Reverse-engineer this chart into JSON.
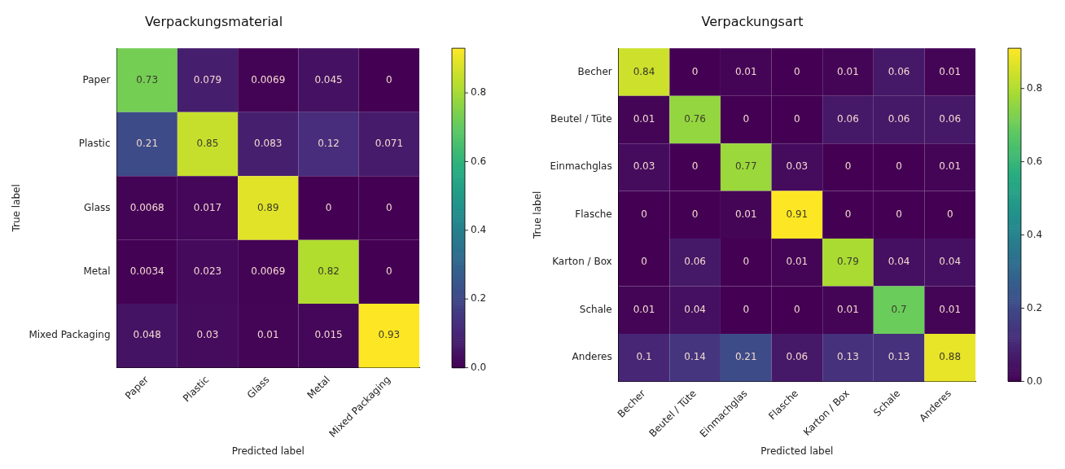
{
  "chart_data": [
    {
      "type": "heatmap",
      "title": "Verpackungsmaterial",
      "xlabel": "Predicted label",
      "ylabel": "True label",
      "categories": [
        "Paper",
        "Plastic",
        "Glass",
        "Metal",
        "Mixed Packaging"
      ],
      "y_categories": [
        "Paper",
        "Plastic",
        "Glass",
        "Metal",
        "Mixed Packaging"
      ],
      "cells": [
        [
          0.73,
          0.079,
          0.0069,
          0.045,
          0
        ],
        [
          0.21,
          0.85,
          0.083,
          0.12,
          0.071
        ],
        [
          0.0068,
          0.017,
          0.89,
          0,
          0
        ],
        [
          0.0034,
          0.023,
          0.0069,
          0.82,
          0
        ],
        [
          0.048,
          0.03,
          0.01,
          0.015,
          0.93
        ]
      ],
      "clim": [
        0,
        0.93
      ],
      "cticks": [
        {
          "value": 0,
          "label": "0.0"
        },
        {
          "value": 0.2,
          "label": "0.2"
        },
        {
          "value": 0.4,
          "label": "0.4"
        },
        {
          "value": 0.6,
          "label": "0.6"
        },
        {
          "value": 0.8,
          "label": "0.8"
        }
      ],
      "data_labels": true
    },
    {
      "type": "heatmap",
      "title": "Verpackungsart",
      "xlabel": "Predicted label",
      "ylabel": "True label",
      "categories": [
        "Becher",
        "Beutel / Tüte",
        "Einmachglas",
        "Flasche",
        "Karton / Box",
        "Schale",
        "Anderes"
      ],
      "y_categories": [
        "Becher",
        "Beutel / Tüte",
        "Einmachglas",
        "Flasche",
        "Karton / Box",
        "Schale",
        "Anderes"
      ],
      "cells": [
        [
          0.84,
          0,
          0.01,
          0,
          0.01,
          0.06,
          0.01
        ],
        [
          0.01,
          0.76,
          0,
          0,
          0.06,
          0.06,
          0.06
        ],
        [
          0.03,
          0,
          0.77,
          0.03,
          0,
          0,
          0.01
        ],
        [
          0,
          0,
          0.01,
          0.91,
          0,
          0,
          0
        ],
        [
          0,
          0.06,
          0,
          0.01,
          0.79,
          0.04,
          0.04
        ],
        [
          0.01,
          0.04,
          0,
          0,
          0.01,
          0.7,
          0.01
        ],
        [
          0.1,
          0.14,
          0.21,
          0.06,
          0.13,
          0.13,
          0.88
        ]
      ],
      "clim": [
        0,
        0.91
      ],
      "cticks": [
        {
          "value": 0,
          "label": "0.0"
        },
        {
          "value": 0.2,
          "label": "0.2"
        },
        {
          "value": 0.4,
          "label": "0.4"
        },
        {
          "value": 0.6,
          "label": "0.6"
        },
        {
          "value": 0.8,
          "label": "0.8"
        }
      ],
      "data_labels": true
    }
  ]
}
